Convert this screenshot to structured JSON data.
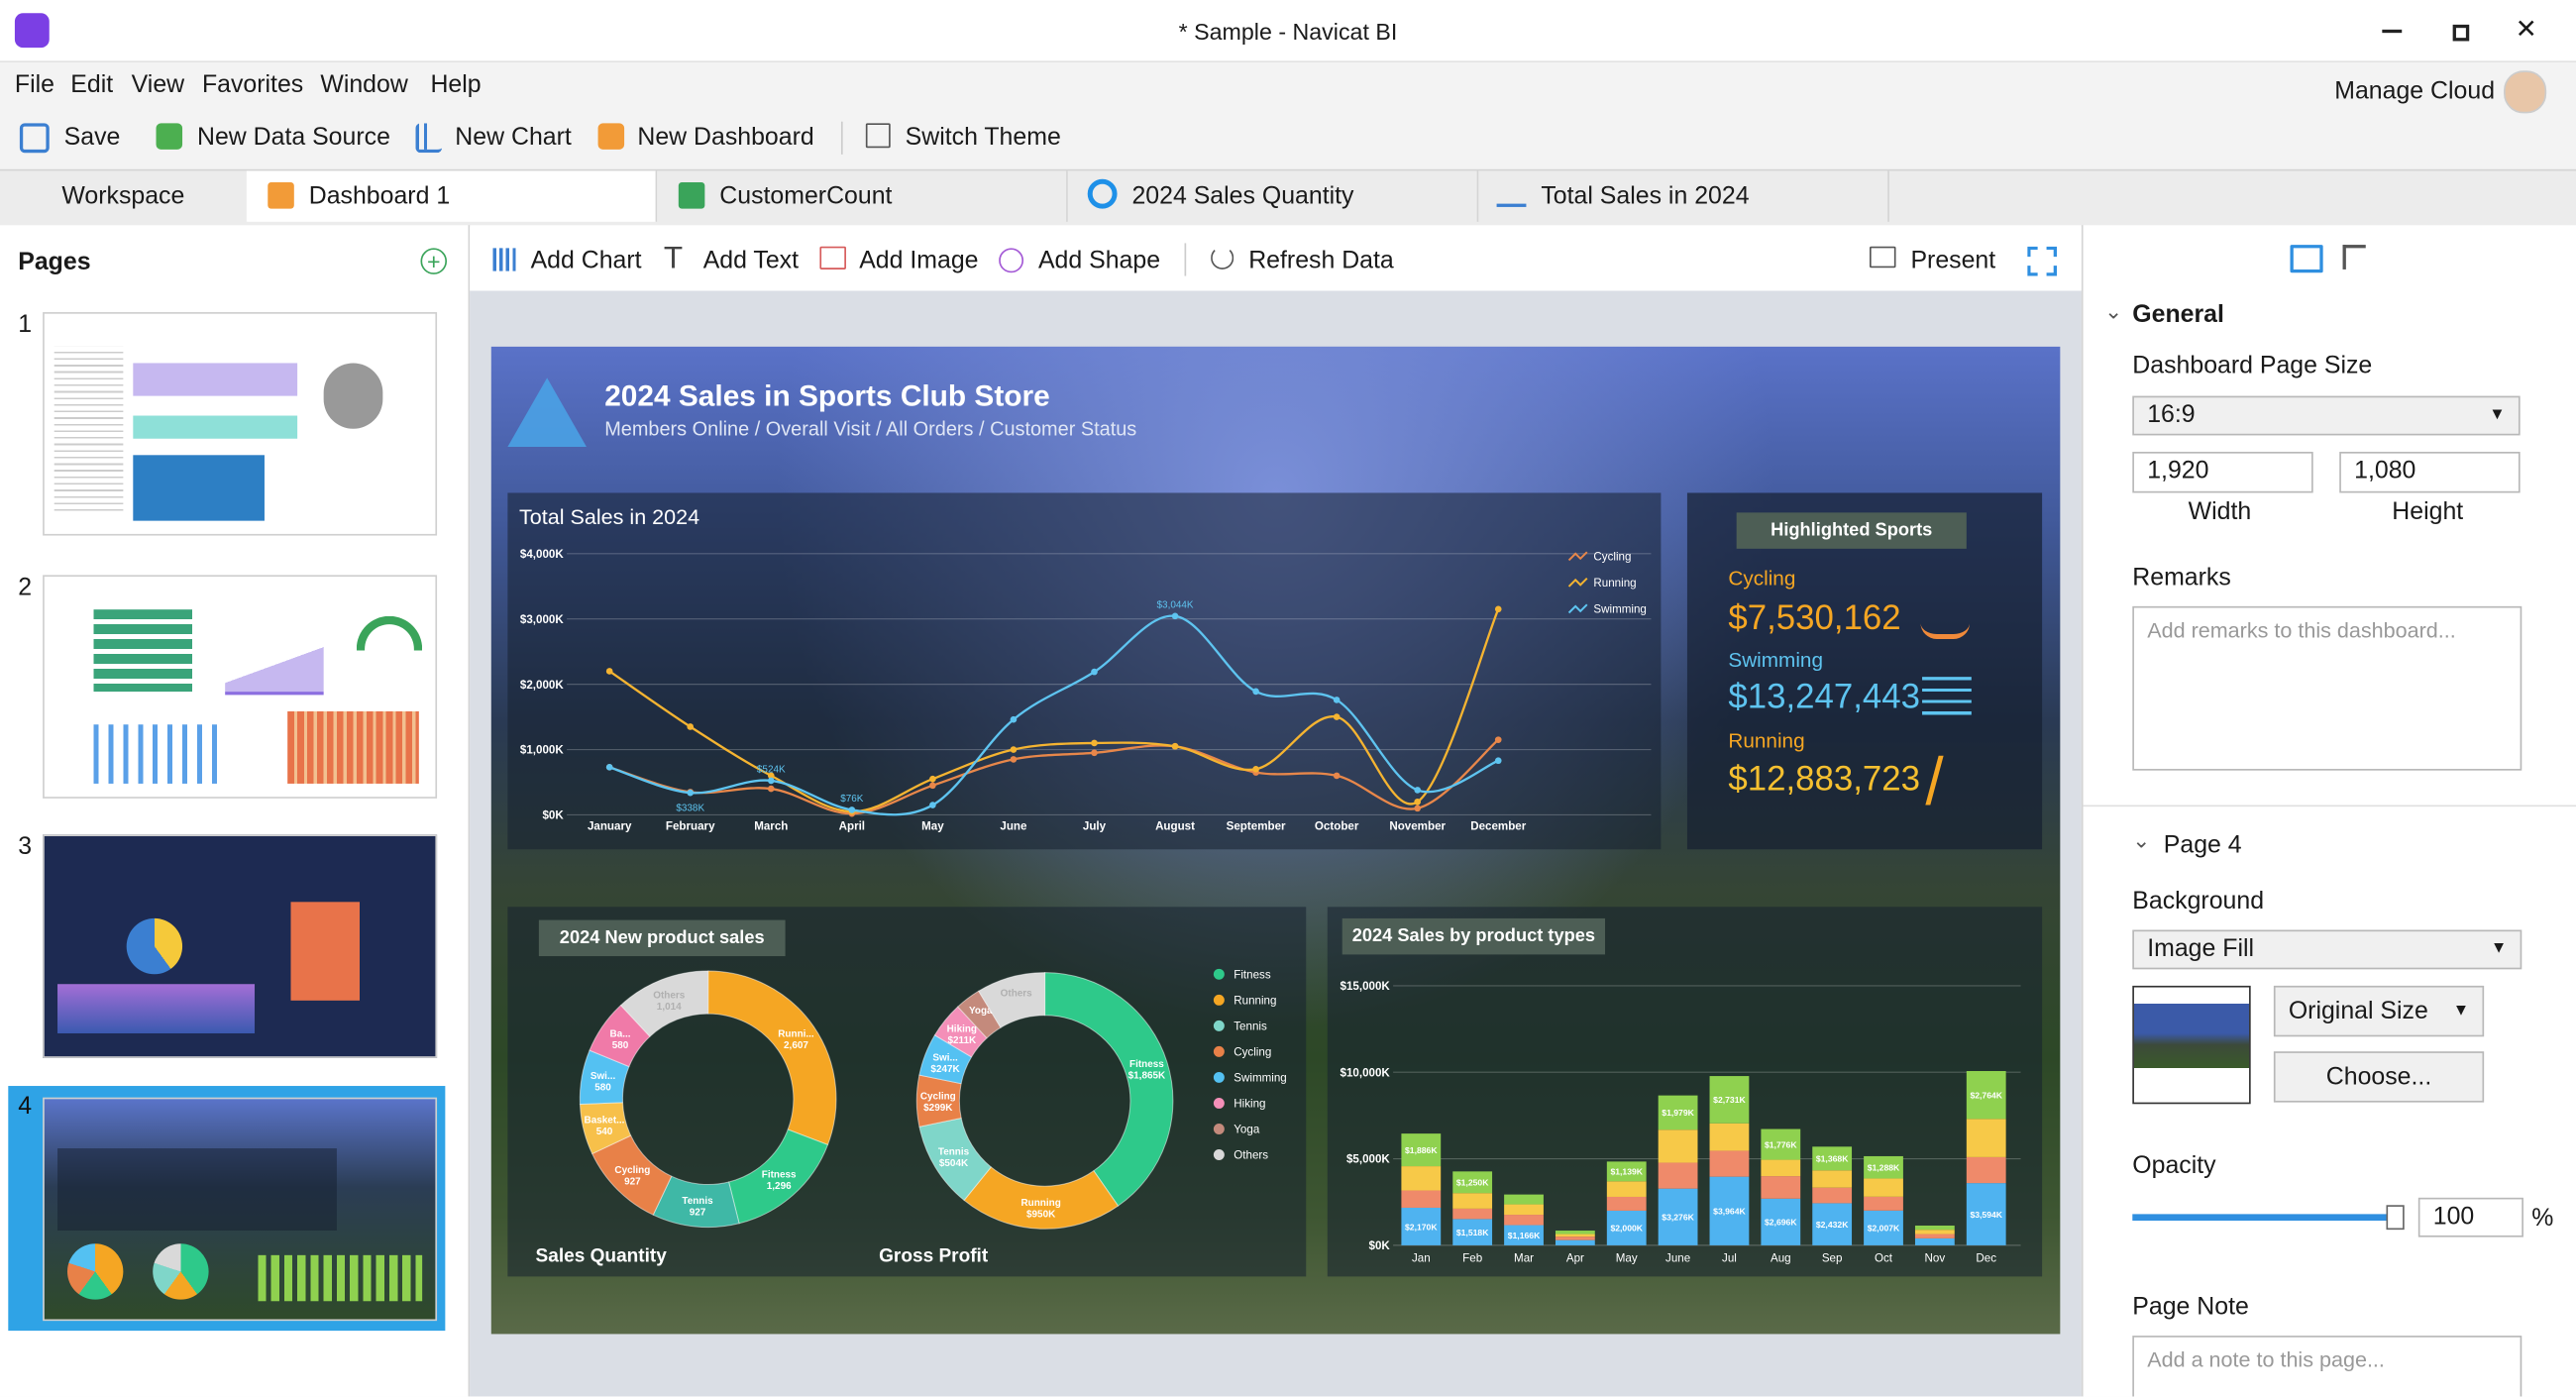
{
  "window": {
    "title": "* Sample - Navicat BI"
  },
  "menu": [
    "File",
    "Edit",
    "View",
    "Favorites",
    "Window",
    "Help"
  ],
  "account": "Manage Cloud",
  "toolbar": [
    "Save",
    "New Data Source",
    "New Chart",
    "New Dashboard",
    "Switch Theme"
  ],
  "tabs": [
    "Workspace",
    "Dashboard 1",
    "CustomerCount",
    "2024 Sales Quantity",
    "Total Sales in 2024"
  ],
  "pages": {
    "title": "Pages",
    "items": [
      "1",
      "2",
      "3",
      "4"
    ]
  },
  "canvas_toolbar": [
    "Add Chart",
    "Add Text",
    "Add Image",
    "Add Shape",
    "Refresh Data",
    "Present"
  ],
  "dashboard": {
    "title": "2024 Sales in Sports Club Store",
    "subtitle": "Members Online / Overall Visit / All Orders / Customer Status",
    "highlight": {
      "title": "Highlighted Sports",
      "items": [
        {
          "label": "Cycling",
          "value": "$7,530,162"
        },
        {
          "label": "Swimming",
          "value": "$13,247,443"
        },
        {
          "label": "Running",
          "value": "$12,883,723"
        }
      ]
    },
    "donut_panel_title": "2024 New product sales",
    "donut_legend": [
      {
        "name": "Fitness",
        "color": "#2ec98a"
      },
      {
        "name": "Running",
        "color": "#f5a623"
      },
      {
        "name": "Tennis",
        "color": "#7fd6c9"
      },
      {
        "name": "Cycling",
        "color": "#e88148"
      },
      {
        "name": "Swimming",
        "color": "#54c1f2"
      },
      {
        "name": "Hiking",
        "color": "#f48fb8"
      },
      {
        "name": "Yoga",
        "color": "#c48a7c"
      },
      {
        "name": "Others",
        "color": "#d9d9d9"
      }
    ]
  },
  "chart_data": [
    {
      "type": "line",
      "title": "Total Sales in 2024",
      "categories": [
        "January",
        "February",
        "March",
        "April",
        "May",
        "June",
        "July",
        "August",
        "September",
        "October",
        "November",
        "December"
      ],
      "series": [
        {
          "name": "Cycling",
          "color": "#e8874a",
          "values": [
            730,
            350,
            400,
            20,
            450,
            850,
            950,
            1050,
            650,
            600,
            100,
            1150
          ]
        },
        {
          "name": "Running",
          "color": "#f5b431",
          "values": [
            2200,
            1350,
            600,
            50,
            550,
            1000,
            1100,
            1050,
            700,
            1500,
            200,
            3150
          ]
        },
        {
          "name": "Swimming",
          "color": "#5ec4f0",
          "values": [
            730,
            338,
            524,
            76,
            150,
            1460,
            2190,
            3044,
            1890,
            1760,
            380,
            830
          ],
          "value_labels": [
            null,
            "$338K",
            "$524K",
            "$76K",
            null,
            null,
            null,
            "$3,044K",
            null,
            null,
            null,
            null
          ]
        }
      ],
      "ylim": [
        0,
        4000
      ],
      "yticks": [
        {
          "value": 0,
          "label": "$0K"
        },
        {
          "value": 1000,
          "label": "$1,000K"
        },
        {
          "value": 2000,
          "label": "$2,000K"
        },
        {
          "value": 3000,
          "label": "$3,000K"
        },
        {
          "value": 4000,
          "label": "$4,000K"
        }
      ],
      "grid": true
    },
    {
      "type": "pie",
      "title": "Sales Quantity",
      "categories": [
        "Others",
        "Runni...",
        "Fitness",
        "Tennis",
        "Cycling",
        "Basket...",
        "Swi...",
        "Ba..."
      ],
      "values": [
        1014,
        2607,
        1296,
        927,
        927,
        540,
        580,
        580
      ],
      "value_labels": [
        "1,014",
        "2,607",
        "1,296",
        "927",
        "927",
        "540",
        "580",
        "580"
      ],
      "colors": [
        "#d9d9d9",
        "#f5a623",
        "#2ec98a",
        "#3fb8a6",
        "#e88148",
        "#f7c04a",
        "#54c1f2",
        "#f07aa8"
      ]
    },
    {
      "type": "pie",
      "title": "Gross Profit",
      "categories": [
        "Fitness",
        "Running",
        "Tennis",
        "Cycling",
        "Swi...",
        "Hiking",
        "Yoga",
        "Others"
      ],
      "values": [
        1865,
        950,
        504,
        299,
        247,
        211,
        150,
        400
      ],
      "value_labels": [
        "$1,865K",
        "$950K",
        "$504K",
        "$299K",
        "$247K",
        "$211K",
        null,
        null
      ],
      "colors": [
        "#2ec98a",
        "#f5a623",
        "#7fd6c9",
        "#e88148",
        "#54c1f2",
        "#f48fb8",
        "#c48a7c",
        "#d9d9d9"
      ]
    },
    {
      "type": "bar",
      "stacked": true,
      "title": "2024 Sales by product types",
      "categories": [
        "Jan",
        "Feb",
        "Mar",
        "Apr",
        "May",
        "June",
        "Jul",
        "Aug",
        "Sep",
        "Oct",
        "Nov",
        "Dec"
      ],
      "series": [
        {
          "color": "#4fb3f0",
          "values": [
            2170,
            1518,
            1166,
            300,
            2000,
            3276,
            3964,
            2696,
            2432,
            2007,
            400,
            3594
          ],
          "value_labels": [
            "$2,170K",
            "$1,518K",
            "$1,166K",
            null,
            "$2,000K",
            "$3,276K",
            "$3,964K",
            "$2,696K",
            "$2,432K",
            "$2,007K",
            null,
            "$3,594K"
          ]
        },
        {
          "color": "#ef8a6a",
          "values": [
            1000,
            600,
            600,
            200,
            800,
            1500,
            1500,
            1300,
            900,
            800,
            250,
            1500
          ]
        },
        {
          "color": "#f7c948",
          "values": [
            1400,
            900,
            600,
            150,
            900,
            1905,
            1585,
            947,
            1000,
            1054,
            250,
            2212
          ]
        },
        {
          "color": "#8fd14f",
          "values": [
            1886,
            1250,
            570,
            200,
            1139,
            1979,
            2731,
            1776,
            1368,
            1288,
            240,
            2764
          ],
          "value_labels": [
            "$1,886K",
            "$1,250K",
            null,
            null,
            "$1,139K",
            "$1,979K",
            "$2,731K",
            "$1,776K",
            "$1,368K",
            "$1,288K",
            null,
            "$2,764K"
          ]
        }
      ],
      "ylim": [
        0,
        15000
      ],
      "yticks": [
        {
          "value": 0,
          "label": "$0K"
        },
        {
          "value": 5000,
          "label": "$5,000K"
        },
        {
          "value": 10000,
          "label": "$10,000K"
        },
        {
          "value": 15000,
          "label": "$15,000K"
        }
      ],
      "grid": true
    }
  ],
  "properties": {
    "general": "General",
    "page_size_label": "Dashboard Page Size",
    "page_size": "16:9",
    "width": "1,920",
    "width_label": "Width",
    "height": "1,080",
    "height_label": "Height",
    "remarks_label": "Remarks",
    "remarks_placeholder": "Add remarks to this dashboard...",
    "page": "Page 4",
    "background_label": "Background",
    "background": "Image Fill",
    "image_size": "Original Size",
    "choose": "Choose...",
    "opacity_label": "Opacity",
    "opacity": 100,
    "opacity_unit": "%",
    "note_label": "Page Note",
    "note_placeholder": "Add a note to this page..."
  }
}
